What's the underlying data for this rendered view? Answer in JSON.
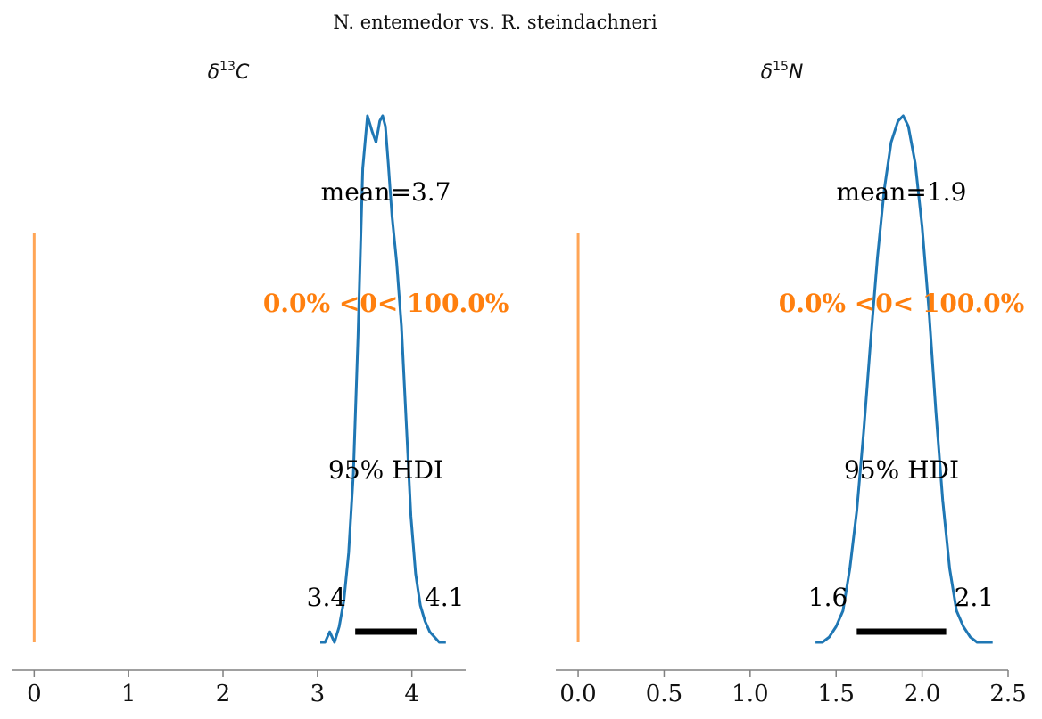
{
  "title": "N. entemedor vs. R. steindachneri",
  "colors": {
    "density": "#1f77b4",
    "reference": "#ff7f0e",
    "hdi": "#000000",
    "axis": "#808080"
  },
  "chart_data": [
    {
      "type": "line",
      "panel_title": {
        "base": "δ",
        "sup": "13",
        "tail": "C"
      },
      "xlim": [
        -0.23,
        4.57
      ],
      "ticks": [
        0,
        1,
        2,
        3,
        4
      ],
      "tick_labels": [
        "0",
        "1",
        "2",
        "3",
        "4"
      ],
      "mean_label": "mean=3.7",
      "ref_value": 0,
      "ref_label": "0.0% <0< 100.0%",
      "hdi_label": "95% HDI",
      "hdi": [
        3.4,
        4.05
      ],
      "hdi_low_label": "3.4",
      "hdi_high_label": "4.1",
      "density": {
        "x": [
          3.03,
          3.08,
          3.13,
          3.18,
          3.23,
          3.28,
          3.33,
          3.38,
          3.43,
          3.48,
          3.53,
          3.58,
          3.62,
          3.66,
          3.69,
          3.72,
          3.75,
          3.79,
          3.84,
          3.89,
          3.94,
          3.99,
          4.04,
          4.09,
          4.14,
          4.19,
          4.24,
          4.29,
          4.36
        ],
        "y": [
          0.0,
          0.0,
          0.02,
          0.0,
          0.03,
          0.08,
          0.17,
          0.32,
          0.58,
          0.9,
          1.0,
          0.97,
          0.95,
          0.99,
          1.0,
          0.98,
          0.91,
          0.81,
          0.72,
          0.6,
          0.42,
          0.24,
          0.13,
          0.07,
          0.04,
          0.02,
          0.01,
          0.0,
          0.0
        ]
      }
    },
    {
      "type": "line",
      "panel_title": {
        "base": "δ",
        "sup": "15",
        "tail": "N"
      },
      "xlim": [
        -0.13,
        2.5
      ],
      "ticks": [
        0.0,
        0.5,
        1.0,
        1.5,
        2.0,
        2.5
      ],
      "tick_labels": [
        "0.0",
        "0.5",
        "1.0",
        "1.5",
        "2.0",
        "2.5"
      ],
      "mean_label": "mean=1.9",
      "ref_value": 0,
      "ref_label": "0.0% <0< 100.0%",
      "hdi_label": "95% HDI",
      "hdi": [
        1.62,
        2.14
      ],
      "hdi_low_label": "1.6",
      "hdi_high_label": "2.1",
      "density": {
        "x": [
          1.38,
          1.42,
          1.46,
          1.5,
          1.54,
          1.58,
          1.62,
          1.66,
          1.7,
          1.74,
          1.78,
          1.82,
          1.86,
          1.89,
          1.92,
          1.96,
          2.0,
          2.04,
          2.08,
          2.12,
          2.16,
          2.2,
          2.24,
          2.28,
          2.32,
          2.36,
          2.41
        ],
        "y": [
          0.0,
          0.0,
          0.01,
          0.03,
          0.06,
          0.14,
          0.25,
          0.4,
          0.57,
          0.73,
          0.86,
          0.95,
          0.99,
          1.0,
          0.98,
          0.91,
          0.79,
          0.63,
          0.44,
          0.27,
          0.14,
          0.06,
          0.03,
          0.01,
          0.0,
          0.0,
          0.0
        ]
      }
    }
  ]
}
